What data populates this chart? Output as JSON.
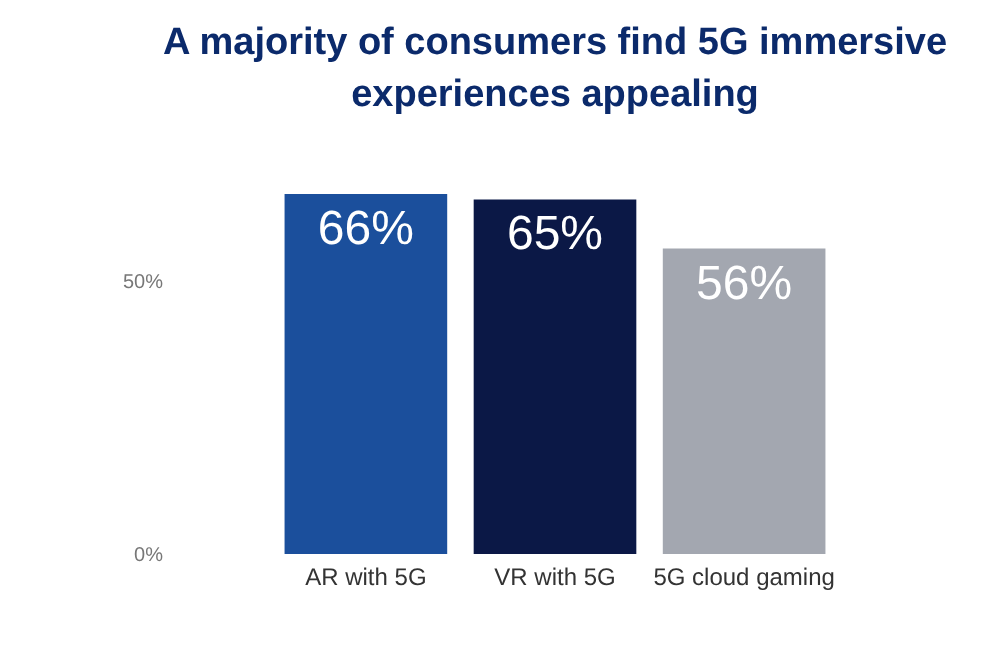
{
  "chart_data": {
    "type": "bar",
    "title": "A majority of consumers find 5G immersive experiences appealing",
    "categories": [
      "AR with 5G",
      "VR with 5G",
      "5G cloud gaming"
    ],
    "values": [
      66,
      65,
      56
    ],
    "colors": [
      "#1b4f9c",
      "#0b1846",
      "#a3a7b0"
    ],
    "value_labels": [
      "66%",
      "65%",
      "56%"
    ],
    "ylim": [
      0,
      66
    ],
    "yticks": [
      {
        "value": 0,
        "label": "0%"
      },
      {
        "value": 50,
        "label": "50%"
      }
    ],
    "grid": false
  }
}
